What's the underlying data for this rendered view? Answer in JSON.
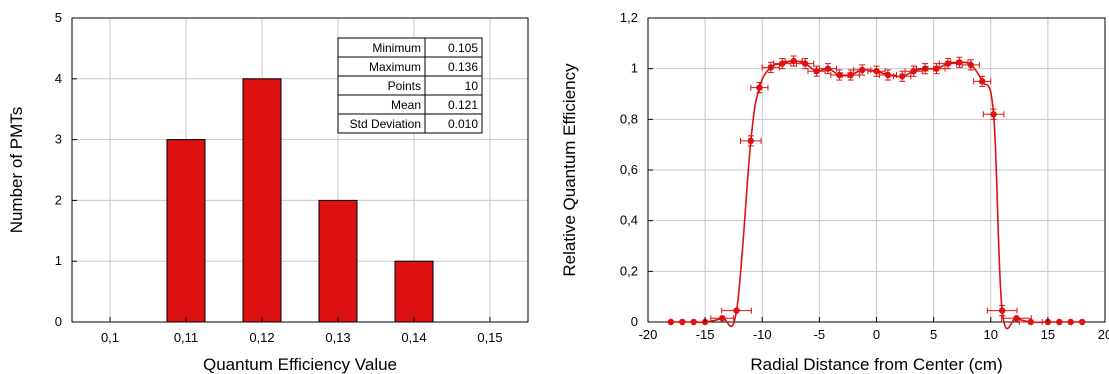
{
  "colors": {
    "bar": "#dd1111",
    "line": "#dd1111",
    "grid": "#c8c8c8",
    "axis": "#000000"
  },
  "chart_data": [
    {
      "type": "bar",
      "xlabel": "Quantum Efficiency Value",
      "ylabel": "Number of PMTs",
      "xlim": [
        0.095,
        0.155
      ],
      "ylim": [
        0,
        5
      ],
      "xticks": [
        "0,1",
        "0,11",
        "0,12",
        "0,13",
        "0,14",
        "0,15"
      ],
      "xtick_values": [
        0.1,
        0.11,
        0.12,
        0.13,
        0.14,
        0.15
      ],
      "yticks": [
        "0",
        "1",
        "2",
        "3",
        "4",
        "5"
      ],
      "categories": [
        0.11,
        0.12,
        0.13,
        0.14
      ],
      "values": [
        3,
        4,
        2,
        1
      ],
      "grid": true,
      "stats_table": [
        {
          "label": "Minimum",
          "value": "0.105"
        },
        {
          "label": "Maximum",
          "value": "0.136"
        },
        {
          "label": "Points",
          "value": "10"
        },
        {
          "label": "Mean",
          "value": "0.121"
        },
        {
          "label": "Std Deviation",
          "value": "0.010"
        }
      ]
    },
    {
      "type": "line",
      "xlabel": "Radial Distance from Center (cm)",
      "ylabel": "Relative Quantum Efficiency",
      "xlim": [
        -20,
        20
      ],
      "ylim": [
        0,
        1.2
      ],
      "xticks": [
        "-20",
        "-15",
        "-10",
        "-5",
        "0",
        "5",
        "10",
        "15",
        "20"
      ],
      "xtick_values": [
        -20,
        -15,
        -10,
        -5,
        0,
        5,
        10,
        15,
        20
      ],
      "yticks": [
        "0",
        "0,2",
        "0,4",
        "0,6",
        "0,8",
        "1",
        "1,2"
      ],
      "ytick_values": [
        0,
        0.2,
        0.4,
        0.6,
        0.8,
        1.0,
        1.2
      ],
      "grid": true,
      "x": [
        -18,
        -17,
        -16,
        -15,
        -13.5,
        -12.25,
        -11,
        -10.25,
        -9.25,
        -8.25,
        -7.25,
        -6.25,
        -5.25,
        -4.25,
        -3.25,
        -2.25,
        -1.25,
        0,
        1,
        2.25,
        3.25,
        4.25,
        5.25,
        6.25,
        7.25,
        8.25,
        9.25,
        10.25,
        11,
        12.25,
        13.5,
        15,
        16,
        17,
        18
      ],
      "y": [
        0,
        0,
        0,
        0,
        0.015,
        0.045,
        0.715,
        0.925,
        1.005,
        1.02,
        1.03,
        1.02,
        0.99,
        1.0,
        0.975,
        0.975,
        0.995,
        0.99,
        0.975,
        0.97,
        0.99,
        1.0,
        1.0,
        1.02,
        1.025,
        1.015,
        0.95,
        0.82,
        0.045,
        0.015,
        0,
        0,
        0,
        0,
        0
      ],
      "xerr": [
        0,
        0,
        0,
        0,
        1,
        1.3,
        0.9,
        0.75,
        0.75,
        0.75,
        0.75,
        0.75,
        0.75,
        0.75,
        0.75,
        0.75,
        0.75,
        0.75,
        0.75,
        0.75,
        0.75,
        0.75,
        0.75,
        0.75,
        0.75,
        0.75,
        0.75,
        0.9,
        1.3,
        1.3,
        1,
        0,
        0,
        0,
        0
      ],
      "yerr": [
        0,
        0,
        0,
        0,
        0,
        0,
        0.02,
        0.02,
        0.02,
        0.02,
        0.02,
        0.02,
        0.02,
        0.02,
        0.02,
        0.02,
        0.02,
        0.02,
        0.02,
        0.02,
        0.02,
        0.02,
        0.02,
        0.02,
        0.02,
        0.02,
        0.02,
        0.02,
        0.02,
        0,
        0,
        0,
        0,
        0,
        0
      ]
    }
  ]
}
